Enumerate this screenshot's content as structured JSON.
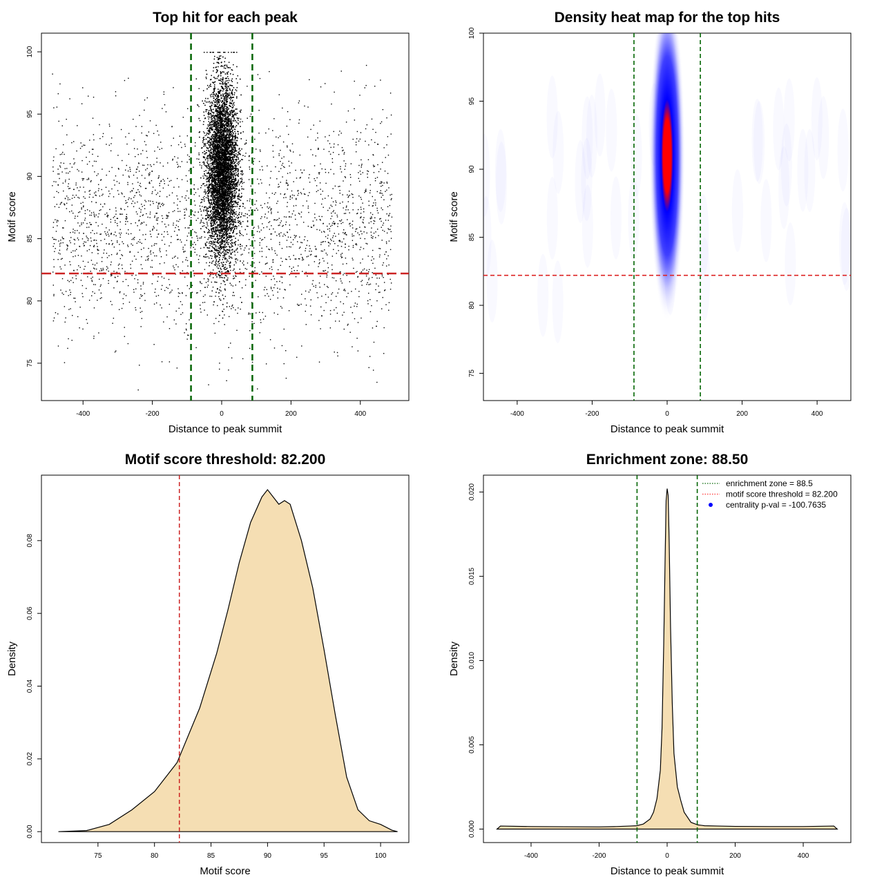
{
  "chart_data": [
    {
      "type": "scatter",
      "title": "Top hit for each peak",
      "xlabel": "Distance to peak summit",
      "ylabel": "Motif score",
      "xlim": [
        -520,
        540
      ],
      "ylim": [
        72,
        101.5
      ],
      "xticks": [
        -400,
        -200,
        0,
        200,
        400
      ],
      "yticks": [
        75,
        80,
        85,
        90,
        95,
        100
      ],
      "vlines": [
        -88.5,
        88.5
      ],
      "hline": 82.2,
      "vline_color": "#006400",
      "hline_color": "#cc2222",
      "point_color": "#000000",
      "clusters": [
        {
          "name": "background",
          "x_range": [
            -490,
            490
          ],
          "y_mean": 86,
          "y_sd": 4.5,
          "approx_points": 2600
        },
        {
          "name": "central",
          "x_center": 0,
          "x_sd": 22,
          "y_mean": 90.5,
          "y_sd": 3.5,
          "approx_points": 12000
        }
      ]
    },
    {
      "type": "heatmap",
      "title": "Density heat map for the top hits",
      "xlabel": "Distance to peak summit",
      "ylabel": "Motif score",
      "xlim": [
        -490,
        490
      ],
      "ylim": [
        73,
        100
      ],
      "xticks": [
        -400,
        -200,
        0,
        200,
        400
      ],
      "yticks": [
        75,
        80,
        85,
        90,
        95,
        100
      ],
      "vlines": [
        -88.5,
        88.5
      ],
      "hline": 82.2,
      "peak": {
        "x": 0,
        "y": 91
      },
      "colors": [
        "#ffffff",
        "#0000ff",
        "#ff0000"
      ]
    },
    {
      "type": "area",
      "title": "Motif score threshold: 82.200",
      "xlabel": "Motif score",
      "ylabel": "Density",
      "xlim": [
        70,
        102.5
      ],
      "ylim": [
        -0.003,
        0.098
      ],
      "xticks": [
        75,
        80,
        85,
        90,
        95,
        100
      ],
      "yticks": [
        0.0,
        0.02,
        0.04,
        0.06,
        0.08
      ],
      "ytick_labels": [
        "0.00",
        "0.02",
        "0.04",
        "0.06",
        "0.08"
      ],
      "vline": 82.2,
      "fill": "#f5deb3",
      "x": [
        71.5,
        74,
        76,
        78,
        80,
        82,
        84,
        85.5,
        86.5,
        87.5,
        88.5,
        89.5,
        90,
        90.5,
        91,
        91.5,
        92,
        93,
        94,
        95,
        96,
        97,
        98,
        99,
        100,
        101,
        101.5
      ],
      "y": [
        0.0,
        0.0003,
        0.002,
        0.006,
        0.011,
        0.019,
        0.034,
        0.049,
        0.061,
        0.074,
        0.085,
        0.092,
        0.094,
        0.092,
        0.09,
        0.091,
        0.09,
        0.08,
        0.067,
        0.05,
        0.032,
        0.015,
        0.006,
        0.003,
        0.002,
        0.0004,
        0.0
      ]
    },
    {
      "type": "area",
      "title": "Enrichment zone: 88.50",
      "xlabel": "Distance to peak summit",
      "ylabel": "Density",
      "xlim": [
        -540,
        540
      ],
      "ylim": [
        -0.0008,
        0.021
      ],
      "xticks": [
        -400,
        -200,
        0,
        200,
        400
      ],
      "yticks": [
        0.0,
        0.005,
        0.01,
        0.015,
        0.02
      ],
      "ytick_labels": [
        "0.000",
        "0.005",
        "0.010",
        "0.015",
        "0.020"
      ],
      "vlines": [
        -88.5,
        88.5
      ],
      "fill": "#f5deb3",
      "x": [
        -500,
        -490,
        -400,
        -300,
        -200,
        -150,
        -110,
        -90,
        -70,
        -50,
        -40,
        -30,
        -20,
        -15,
        -10,
        -6,
        -3,
        0,
        3,
        6,
        10,
        15,
        20,
        30,
        40,
        50,
        70,
        90,
        110,
        150,
        200,
        300,
        400,
        490,
        500
      ],
      "y": [
        0.0,
        0.00018,
        0.00015,
        0.00014,
        0.00013,
        0.00015,
        0.00018,
        0.0002,
        0.0003,
        0.0006,
        0.001,
        0.0018,
        0.0035,
        0.006,
        0.011,
        0.016,
        0.0195,
        0.0202,
        0.0198,
        0.017,
        0.012,
        0.0075,
        0.0045,
        0.0025,
        0.0017,
        0.001,
        0.0004,
        0.00025,
        0.0002,
        0.00018,
        0.00016,
        0.00015,
        0.00015,
        0.00018,
        0.0
      ],
      "legend": {
        "position": "top-right",
        "entries": [
          {
            "label": "enrichment zone = 88.5",
            "color": "#006400",
            "style": "dotted-line"
          },
          {
            "label": "motif score threshold = 82.200",
            "color": "#ff3333",
            "style": "dotted-line"
          },
          {
            "label": "centrality p-val = -100.7635",
            "color": "#0000ff",
            "style": "point"
          }
        ]
      }
    }
  ]
}
